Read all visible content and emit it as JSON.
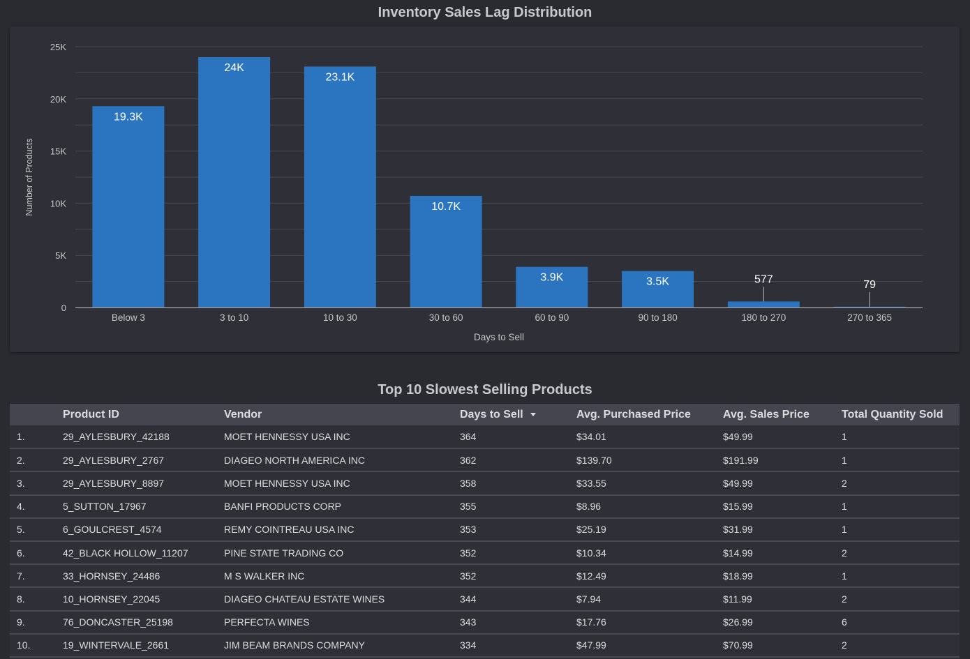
{
  "chart_data": {
    "type": "bar",
    "title": "Inventory Sales Lag Distribution",
    "xlabel": "Days to Sell",
    "ylabel": "Number of Products",
    "categories": [
      "Below 3",
      "3 to 10",
      "10 to 30",
      "30 to 60",
      "60 to 90",
      "90 to 180",
      "180 to 270",
      "270 to 365"
    ],
    "values": [
      19300,
      24000,
      23100,
      10700,
      3900,
      3500,
      577,
      79
    ],
    "data_labels": [
      "19.3K",
      "24K",
      "23.1K",
      "10.7K",
      "3.9K",
      "3.5K",
      "577",
      "79"
    ],
    "ylim": [
      0,
      25000
    ],
    "yticks": [
      0,
      5000,
      10000,
      15000,
      20000,
      25000
    ],
    "ytick_labels": [
      "0",
      "5K",
      "10K",
      "15K",
      "20K",
      "25K"
    ],
    "grid": true,
    "bar_color": "#2b74bf"
  },
  "table": {
    "title": "Top 10 Slowest Selling Products",
    "headers": {
      "index": "",
      "product_id": "Product ID",
      "vendor": "Vendor",
      "days": "Days to Sell",
      "avg_purchase": "Avg. Purchased Price",
      "avg_sales": "Avg. Sales Price",
      "qty": "Total Quantity Sold"
    },
    "rows": [
      [
        "1.",
        "29_AYLESBURY_42188",
        "MOET HENNESSY USA INC",
        "364",
        "$34.01",
        "$49.99",
        "1"
      ],
      [
        "2.",
        "29_AYLESBURY_2767",
        "DIAGEO NORTH AMERICA INC",
        "362",
        "$139.70",
        "$191.99",
        "1"
      ],
      [
        "3.",
        "29_AYLESBURY_8897",
        "MOET HENNESSY USA INC",
        "358",
        "$33.55",
        "$49.99",
        "2"
      ],
      [
        "4.",
        "5_SUTTON_17967",
        "BANFI PRODUCTS CORP",
        "355",
        "$8.96",
        "$15.99",
        "1"
      ],
      [
        "5.",
        "6_GOULCREST_4574",
        "REMY COINTREAU USA INC",
        "353",
        "$25.19",
        "$31.99",
        "1"
      ],
      [
        "6.",
        "42_BLACK HOLLOW_11207",
        "PINE STATE TRADING CO",
        "352",
        "$10.34",
        "$14.99",
        "2"
      ],
      [
        "7.",
        "33_HORNSEY_24486",
        "M S WALKER INC",
        "352",
        "$12.49",
        "$18.99",
        "1"
      ],
      [
        "8.",
        "10_HORNSEY_22045",
        "DIAGEO CHATEAU ESTATE WINES",
        "344",
        "$7.94",
        "$11.99",
        "2"
      ],
      [
        "9.",
        "76_DONCASTER_25198",
        "PERFECTA WINES",
        "343",
        "$17.76",
        "$26.99",
        "6"
      ],
      [
        "10.",
        "19_WINTERVALE_2661",
        "JIM BEAM BRANDS COMPANY",
        "334",
        "$47.99",
        "$70.99",
        "2"
      ]
    ]
  }
}
